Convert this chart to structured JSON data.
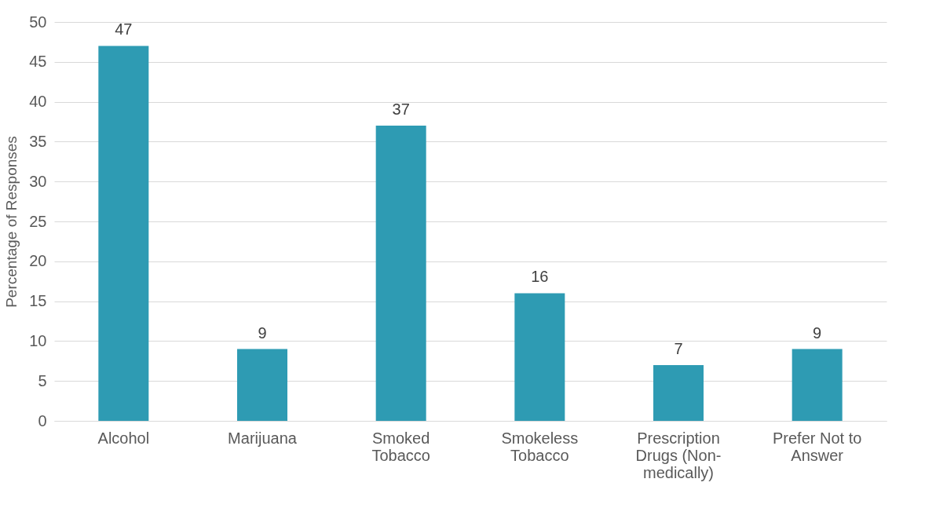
{
  "chart_data": {
    "type": "bar",
    "ylabel": "Percentage of Responses",
    "categories": [
      "Alcohol",
      "Marijuana",
      "Smoked Tobacco",
      "Smokeless Tobacco",
      "Prescription Drugs (Non-medically)",
      "Prefer Not to Answer"
    ],
    "values": [
      47,
      9,
      37,
      16,
      7,
      9
    ],
    "color": "#2e9bb3",
    "ylim": [
      0,
      50
    ],
    "yticks": [
      0,
      5,
      10,
      15,
      20,
      25,
      30,
      35,
      40,
      45,
      50
    ],
    "grid": "y",
    "data_labels": true
  }
}
